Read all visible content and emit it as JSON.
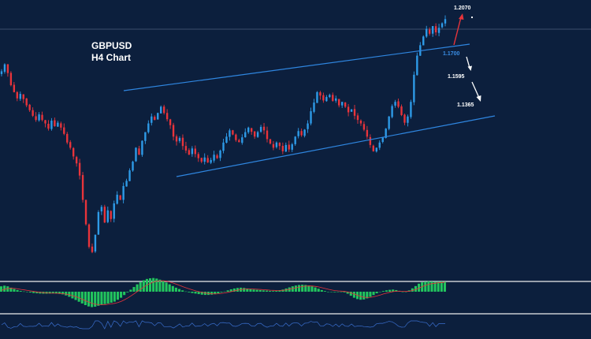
{
  "chart_data": {
    "type": "candlestick",
    "title": "GBPUSD",
    "subtitle": "H4 Chart",
    "levels": [
      {
        "label": "1.2070",
        "color": "#ffffff"
      },
      {
        "label": "1.1700",
        "color": "#3a8ee6"
      },
      {
        "label": "1.1595",
        "color": "#ffffff"
      },
      {
        "label": "1.1365",
        "color": "#ffffff"
      }
    ],
    "up_color": "#2e9be8",
    "down_color": "#e8343b",
    "channel_color": "#2f86e0",
    "macd_hist_color": "#22c55e",
    "macd_signal_color": "#e8343b",
    "rsi_color": "#3a6fcf",
    "background_color": "#0c1f3d",
    "separator_color": "#c8ccd2",
    "projection_up_color": "#e8343b",
    "projection_down_color": "#ffffff",
    "closes": [
      1.191,
      1.193,
      1.1905,
      1.187,
      1.185,
      1.1832,
      1.1845,
      1.183,
      1.1812,
      1.1798,
      1.1782,
      1.177,
      1.1786,
      1.177,
      1.176,
      1.1745,
      1.1768,
      1.1752,
      1.1762,
      1.1748,
      1.173,
      1.1705,
      1.169,
      1.1665,
      1.1645,
      1.161,
      1.154,
      1.147,
      1.1405,
      1.139,
      1.144,
      1.1505,
      1.152,
      1.1475,
      1.151,
      1.1485,
      1.153,
      1.1555,
      1.154,
      1.158,
      1.1595,
      1.1625,
      1.165,
      1.169,
      1.167,
      1.171,
      1.1735,
      1.176,
      1.178,
      1.177,
      1.179,
      1.1808,
      1.179,
      1.1772,
      1.1755,
      1.1722,
      1.1708,
      1.1718,
      1.1695,
      1.1682,
      1.167,
      1.1688,
      1.1672,
      1.166,
      1.165,
      1.1662,
      1.1648,
      1.1655,
      1.167,
      1.166,
      1.1682,
      1.1705,
      1.1722,
      1.174,
      1.1728,
      1.1712,
      1.1706,
      1.172,
      1.1735,
      1.1748,
      1.1736,
      1.1722,
      1.1735,
      1.175,
      1.174,
      1.1715,
      1.1702,
      1.169,
      1.1705,
      1.1695,
      1.168,
      1.1698,
      1.1685,
      1.17,
      1.1722,
      1.1738,
      1.1726,
      1.1742,
      1.176,
      1.1795,
      1.182,
      1.185,
      1.184,
      1.1826,
      1.1836,
      1.1842,
      1.1825,
      1.1832,
      1.1812,
      1.1822,
      1.1808,
      1.1792,
      1.18,
      1.1782,
      1.177,
      1.176,
      1.1742,
      1.1722,
      1.1698,
      1.168,
      1.169,
      1.1705,
      1.172,
      1.1745,
      1.178,
      1.181,
      1.1822,
      1.1808,
      1.1784,
      1.1762,
      1.178,
      1.1822,
      1.19,
      1.1955,
      1.1985,
      1.201,
      1.2032,
      1.2018,
      1.204,
      1.2022,
      1.2035,
      1.2048,
      1.206
    ],
    "macd_hist": [
      0.4,
      0.45,
      0.4,
      0.3,
      0.2,
      0.12,
      0.06,
      0.02,
      -0.02,
      -0.06,
      -0.1,
      -0.12,
      -0.14,
      -0.15,
      -0.15,
      -0.14,
      -0.13,
      -0.14,
      -0.16,
      -0.2,
      -0.28,
      -0.38,
      -0.5,
      -0.62,
      -0.75,
      -0.88,
      -1.0,
      -1.1,
      -1.15,
      -1.12,
      -1.05,
      -0.98,
      -0.92,
      -0.88,
      -0.82,
      -0.74,
      -0.6,
      -0.45,
      -0.25,
      -0.05,
      0.15,
      0.35,
      0.55,
      0.72,
      0.85,
      0.95,
      1.0,
      1.02,
      0.98,
      0.9,
      0.8,
      0.68,
      0.55,
      0.42,
      0.3,
      0.2,
      0.1,
      0.02,
      -0.05,
      -0.1,
      -0.14,
      -0.18,
      -0.22,
      -0.24,
      -0.24,
      -0.22,
      -0.18,
      -0.12,
      -0.05,
      0.02,
      0.1,
      0.18,
      0.24,
      0.28,
      0.3,
      0.28,
      0.24,
      0.2,
      0.16,
      0.14,
      0.12,
      0.1,
      0.08,
      0.06,
      0.05,
      0.06,
      0.1,
      0.16,
      0.24,
      0.32,
      0.4,
      0.46,
      0.5,
      0.52,
      0.5,
      0.46,
      0.4,
      0.32,
      0.22,
      0.12,
      0.05,
      0.0,
      -0.02,
      -0.04,
      -0.02,
      0.0,
      -0.05,
      -0.15,
      -0.3,
      -0.45,
      -0.55,
      -0.6,
      -0.58,
      -0.5,
      -0.38,
      -0.25,
      -0.12,
      -0.02,
      0.05,
      0.1,
      0.14,
      0.16,
      0.12,
      0.05,
      -0.02,
      0.0,
      0.1,
      0.25,
      0.42,
      0.6,
      0.7,
      0.75,
      0.78,
      0.76,
      0.74,
      0.75,
      0.76,
      0.75
    ]
  }
}
